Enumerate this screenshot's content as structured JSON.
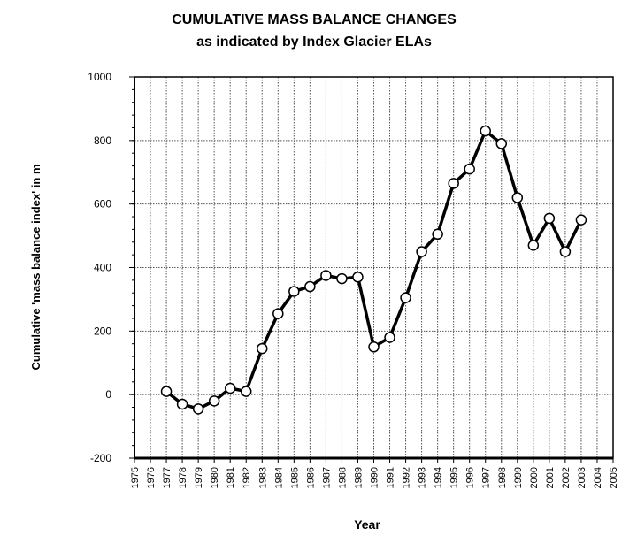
{
  "chart_data": {
    "type": "line",
    "title": "CUMULATIVE MASS BALANCE CHANGES",
    "subtitle": "as indicated by Index Glacier ELAs",
    "xlabel": "Year",
    "ylabel": "Cumulative 'mass balance index' in m",
    "xlim": [
      1975,
      2005
    ],
    "ylim": [
      -200,
      1000
    ],
    "grid": true,
    "x_ticks": [
      "1975",
      "1976",
      "1977",
      "1978",
      "1979",
      "1980",
      "1981",
      "1982",
      "1983",
      "1984",
      "1985",
      "1986",
      "1987",
      "1988",
      "1989",
      "1990",
      "1991",
      "1992",
      "1993",
      "1994",
      "1995",
      "1996",
      "1997",
      "1998",
      "1999",
      "2000",
      "2001",
      "2002",
      "2003",
      "2004",
      "2005"
    ],
    "y_ticks": [
      "-200",
      "0",
      "200",
      "400",
      "600",
      "800",
      "1000"
    ],
    "series": [
      {
        "name": "Cumulative mass balance index",
        "x": [
          1977,
          1978,
          1979,
          1980,
          1981,
          1982,
          1983,
          1984,
          1985,
          1986,
          1987,
          1988,
          1989,
          1990,
          1991,
          1992,
          1993,
          1994,
          1995,
          1996,
          1997,
          1998,
          1999,
          2000,
          2001,
          2002,
          2003
        ],
        "values": [
          10,
          -30,
          -45,
          -20,
          20,
          10,
          145,
          255,
          325,
          340,
          375,
          365,
          370,
          150,
          180,
          305,
          450,
          505,
          665,
          710,
          830,
          790,
          620,
          470,
          555,
          450,
          550
        ]
      }
    ]
  }
}
